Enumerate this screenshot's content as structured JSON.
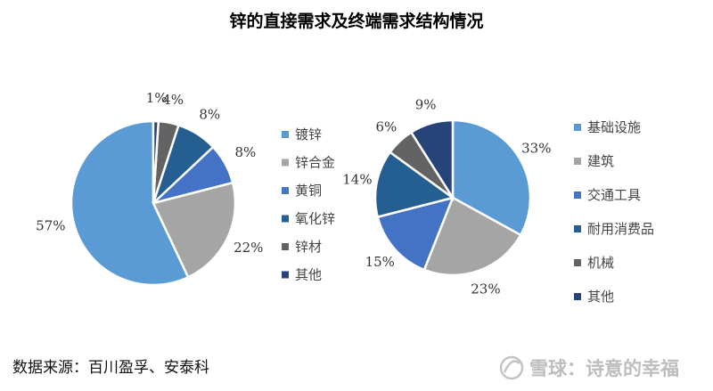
{
  "title": "锌的直接需求及终端需求结构情况",
  "source": "数据来源：百川盈孚、安泰科",
  "watermark": {
    "text": "雪球：诗意的幸福",
    "color": "#bdbdbd"
  },
  "chart_data": [
    {
      "type": "pie",
      "title": "",
      "slices": [
        {
          "label": "镀锌",
          "value": 57,
          "label_text": "57%",
          "color": "#5b9bd5"
        },
        {
          "label": "锌合金",
          "value": 22,
          "label_text": "22%",
          "color": "#a5a5a5"
        },
        {
          "label": "黄铜",
          "value": 8,
          "label_text": "8%",
          "color": "#4472c4"
        },
        {
          "label": "氧化锌",
          "value": 8,
          "label_text": "8%",
          "color": "#255e91"
        },
        {
          "label": "锌材",
          "value": 4,
          "label_text": "4%",
          "color": "#636363"
        },
        {
          "label": "其他",
          "value": 1,
          "label_text": "1%",
          "color": "#264478"
        }
      ],
      "legend_position": "right"
    },
    {
      "type": "pie",
      "title": "",
      "slices": [
        {
          "label": "基础设施",
          "value": 33,
          "label_text": "33%",
          "color": "#5b9bd5"
        },
        {
          "label": "建筑",
          "value": 23,
          "label_text": "23%",
          "color": "#a5a5a5"
        },
        {
          "label": "交通工具",
          "value": 15,
          "label_text": "15%",
          "color": "#4472c4"
        },
        {
          "label": "耐用消费品",
          "value": 14,
          "label_text": "14%",
          "color": "#255e91"
        },
        {
          "label": "机械",
          "value": 6,
          "label_text": "6%",
          "color": "#636363"
        },
        {
          "label": "其他",
          "value": 9,
          "label_text": "9%",
          "color": "#264478"
        }
      ],
      "legend_position": "right"
    }
  ]
}
